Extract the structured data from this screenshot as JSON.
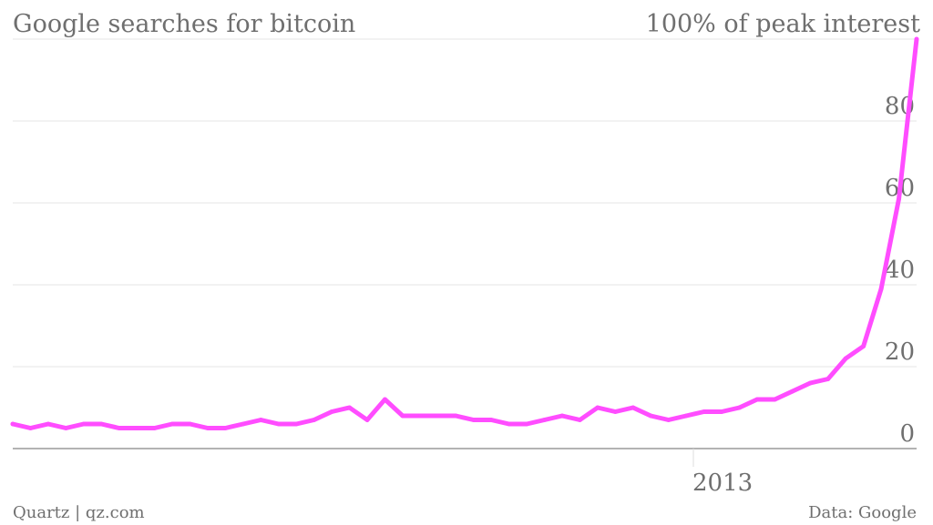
{
  "chart_data": {
    "type": "line",
    "title": "Google searches for bitcoin",
    "ylabel": "100% of peak interest",
    "ylim": [
      0,
      100
    ],
    "yticks": [
      0,
      20,
      40,
      60,
      80
    ],
    "xtick_labels": [
      "2013"
    ],
    "series": [
      {
        "color": "#ff4dff",
        "values": [
          6,
          5,
          6,
          5,
          6,
          6,
          5,
          5,
          5,
          6,
          6,
          5,
          5,
          6,
          7,
          6,
          6,
          7,
          9,
          10,
          7,
          12,
          8,
          8,
          8,
          8,
          7,
          7,
          6,
          6,
          7,
          8,
          7,
          10,
          9,
          10,
          8,
          7,
          8,
          9,
          9,
          10,
          12,
          12,
          14,
          16,
          17,
          22,
          25,
          39,
          61,
          100
        ]
      }
    ],
    "grid": true,
    "legend": "none"
  },
  "footer": {
    "source_left": "Quartz | qz.com",
    "source_right": "Data: Google"
  }
}
